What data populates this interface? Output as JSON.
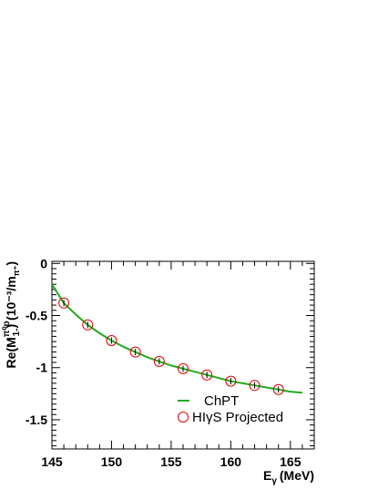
{
  "chart_data": {
    "type": "line",
    "title": "",
    "xlabel": "E",
    "xlabel_sub": "γ",
    "xlabel_unit": "(MeV)",
    "ylabel": "Re(M",
    "ylabel_sup": "π⁰p",
    "ylabel_sub": "1-",
    "ylabel_unit": ") (10⁻³/m",
    "ylabel_unit_sub": "π⁺",
    "ylabel_close": ")",
    "xlim": [
      145,
      167
    ],
    "ylim": [
      -1.78,
      0.02
    ],
    "xticks": [
      145,
      150,
      155,
      160,
      165
    ],
    "xtick_labels": [
      "145",
      "150",
      "155",
      "160",
      "165"
    ],
    "yticks": [
      0,
      -0.5,
      -1,
      -1.5
    ],
    "ytick_labels": [
      "0",
      "-0.5",
      "-1",
      "-1.5"
    ],
    "grid": false,
    "legend_position": "bottom-right",
    "series": [
      {
        "name": "ChPT",
        "kind": "line",
        "color": "#22aa22",
        "x": [
          145,
          146,
          147,
          148,
          149,
          150,
          151,
          152,
          153,
          154,
          155,
          156,
          157,
          158,
          159,
          160,
          161,
          162,
          163,
          164,
          165,
          166
        ],
        "y": [
          -0.2,
          -0.38,
          -0.49,
          -0.59,
          -0.67,
          -0.74,
          -0.8,
          -0.85,
          -0.9,
          -0.94,
          -0.98,
          -1.01,
          -1.04,
          -1.07,
          -1.1,
          -1.13,
          -1.15,
          -1.17,
          -1.19,
          -1.21,
          -1.23,
          -1.24
        ]
      },
      {
        "name": "HIγS Projected",
        "kind": "points",
        "color": "#dd0000",
        "x": [
          146,
          148,
          150,
          152,
          154,
          156,
          158,
          160,
          162,
          164
        ],
        "y": [
          -0.38,
          -0.59,
          -0.74,
          -0.85,
          -0.94,
          -1.01,
          -1.07,
          -1.13,
          -1.17,
          -1.21
        ],
        "err": [
          0.03,
          0.03,
          0.03,
          0.03,
          0.03,
          0.03,
          0.03,
          0.03,
          0.03,
          0.03
        ]
      }
    ]
  }
}
